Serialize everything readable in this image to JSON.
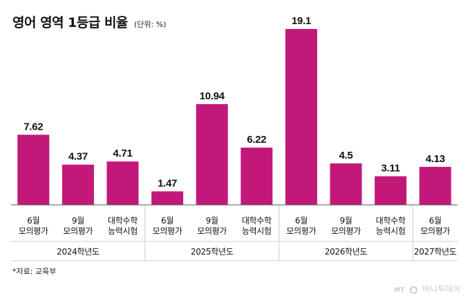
{
  "header": {
    "title": "영어 영역 1등급 비율",
    "unit": "(단위: %)"
  },
  "source": "*자료: 교육부",
  "logo": {
    "small": "MT",
    "name": "머니투데이"
  },
  "colors": {
    "bar": "#c2187a",
    "axis": "#555555",
    "divider": "#cccccc"
  },
  "chart_data": {
    "type": "bar",
    "title": "영어 영역 1등급 비율",
    "subtitle": "(단위: %)",
    "categories": [
      {
        "line1": "6월",
        "line2": "모의평가",
        "group": 0
      },
      {
        "line1": "9월",
        "line2": "모의평가",
        "group": 0
      },
      {
        "line1": "대학수학",
        "line2": "능력시험",
        "group": 0
      },
      {
        "line1": "6월",
        "line2": "모의평가",
        "group": 1
      },
      {
        "line1": "9월",
        "line2": "모의평가",
        "group": 1
      },
      {
        "line1": "대학수학",
        "line2": "능력시험",
        "group": 1
      },
      {
        "line1": "6월",
        "line2": "모의평가",
        "group": 2
      },
      {
        "line1": "9월",
        "line2": "모의평가",
        "group": 2
      },
      {
        "line1": "대학수학",
        "line2": "능력시험",
        "group": 2
      },
      {
        "line1": "6월",
        "line2": "모의평가",
        "group": 3
      }
    ],
    "groups": [
      "2024학년도",
      "2025학년도",
      "2026학년도",
      "2027학년도"
    ],
    "values": [
      7.62,
      4.37,
      4.71,
      1.47,
      10.94,
      6.22,
      19.1,
      4.5,
      3.11,
      4.13
    ],
    "value_labels": [
      "7.62",
      "4.37",
      "4.71",
      "1.47",
      "10.94",
      "6.22",
      "19.1",
      "4.5",
      "3.11",
      "4.13"
    ],
    "ylim": [
      0,
      19.1
    ],
    "grid": false,
    "legend": "none"
  }
}
